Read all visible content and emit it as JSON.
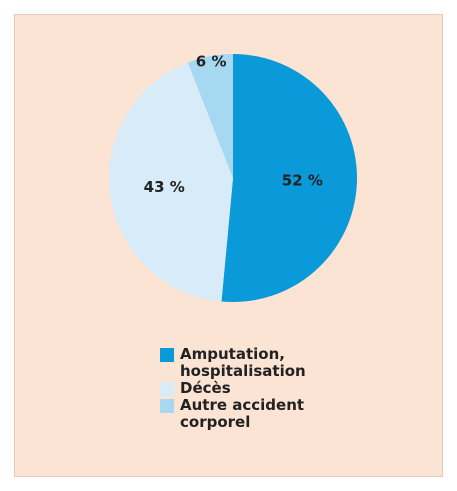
{
  "chart_data": {
    "type": "pie",
    "categories": [
      "Amputation, hospitalisation",
      "Décès",
      "Autre accident corporel"
    ],
    "values": [
      52,
      43,
      6
    ],
    "value_labels": [
      "52 %",
      "43 %",
      "6 %"
    ],
    "colors": [
      "#0a9ad9",
      "#d7ebf8",
      "#a6d8f1"
    ]
  }
}
